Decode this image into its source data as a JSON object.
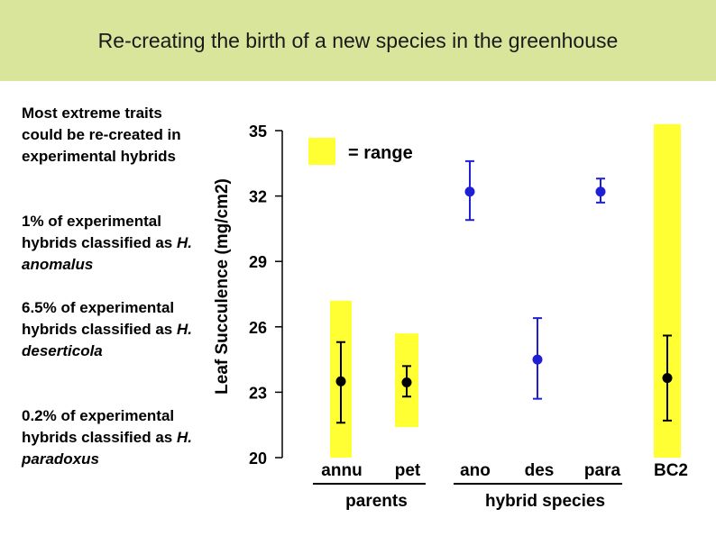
{
  "slide": {
    "title": "Re-creating the birth of a new species in the greenhouse",
    "notes": [
      {
        "text": "Most extreme traits could be re-created in experimental hybrids"
      },
      {
        "text": "1% of experimental hybrids classified as ",
        "species": "H. anomalus"
      },
      {
        "text": "6.5% of experimental hybrids classified as ",
        "species": "H. deserticola"
      },
      {
        "text": "0.2% of experimental hybrids classified as ",
        "species": "H. paradoxus"
      }
    ]
  },
  "chart_data": {
    "type": "scatter",
    "title": "",
    "ylabel": "Leaf Succulence (mg/cm2)",
    "ylim": [
      20,
      35
    ],
    "yticks": [
      20,
      23,
      26,
      29,
      32,
      35
    ],
    "legend": {
      "label": "= range",
      "color": "#ffff33",
      "placement": "top-left"
    },
    "groups": [
      {
        "label": "parents",
        "categories": [
          "annu",
          "pet"
        ]
      },
      {
        "label": "hybrid species",
        "categories": [
          "ano",
          "des",
          "para"
        ]
      }
    ],
    "categories": [
      "annu",
      "pet",
      "ano",
      "des",
      "para",
      "BC2"
    ],
    "points": [
      {
        "category": "annu",
        "mean": 23.5,
        "err_low": 21.6,
        "err_high": 25.3,
        "range": [
          20.0,
          27.2
        ],
        "color": "#000000"
      },
      {
        "category": "pet",
        "mean": 23.45,
        "err_low": 22.8,
        "err_high": 24.2,
        "range": [
          21.4,
          25.7
        ],
        "color": "#000000"
      },
      {
        "category": "ano",
        "mean": 32.2,
        "err_low": 30.9,
        "err_high": 33.6,
        "range": null,
        "color": "#1f1fd6"
      },
      {
        "category": "des",
        "mean": 24.5,
        "err_low": 22.7,
        "err_high": 26.4,
        "range": null,
        "color": "#1f1fd6"
      },
      {
        "category": "para",
        "mean": 32.2,
        "err_low": 31.7,
        "err_high": 32.8,
        "range": null,
        "color": "#1f1fd6"
      },
      {
        "category": "BC2",
        "mean": 23.65,
        "err_low": 21.7,
        "err_high": 25.6,
        "range": [
          20.0,
          35.3
        ],
        "color": "#000000"
      }
    ],
    "colors": {
      "range": "#ffff33",
      "parent": "#000000",
      "hybrid": "#1f1fd6"
    }
  }
}
